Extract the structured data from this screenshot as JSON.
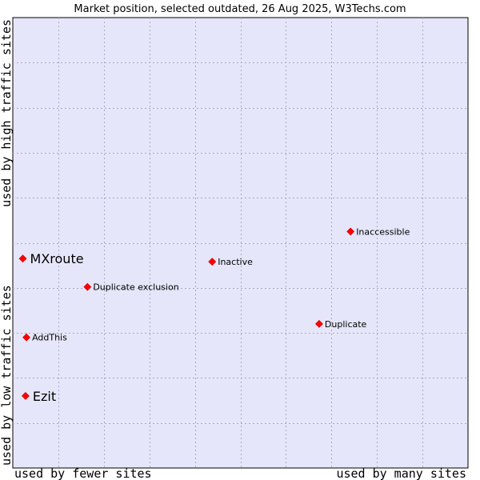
{
  "chart_data": {
    "type": "scatter",
    "title": "Market position, selected outdated, 26 Aug 2025, W3Techs.com",
    "xlabel_left": "used by fewer sites",
    "xlabel_right": "used by many sites",
    "ylabel_bottom": "used by low traffic sites",
    "ylabel_top": "used by high traffic sites",
    "xlim": [
      0,
      100
    ],
    "ylim": [
      0,
      100
    ],
    "grid": true,
    "colors": {
      "plot_background": "#e6e6fa",
      "grid": "#a8a8c8",
      "marker": "#ff0000",
      "marker_edge": "#cc0000"
    },
    "points": [
      {
        "label": "MXroute",
        "x": 2.2,
        "y": 46.5,
        "highlight": true
      },
      {
        "label": "Ezit",
        "x": 2.8,
        "y": 16.0,
        "highlight": true
      },
      {
        "label": "Inaccessible",
        "x": 74.2,
        "y": 52.5,
        "highlight": false
      },
      {
        "label": "Inactive",
        "x": 43.8,
        "y": 45.8,
        "highlight": false
      },
      {
        "label": "Duplicate exclusion",
        "x": 16.4,
        "y": 40.2,
        "highlight": false
      },
      {
        "label": "Duplicate",
        "x": 67.3,
        "y": 32.0,
        "highlight": false
      },
      {
        "label": "AddThis",
        "x": 3.0,
        "y": 29.0,
        "highlight": false
      }
    ]
  }
}
